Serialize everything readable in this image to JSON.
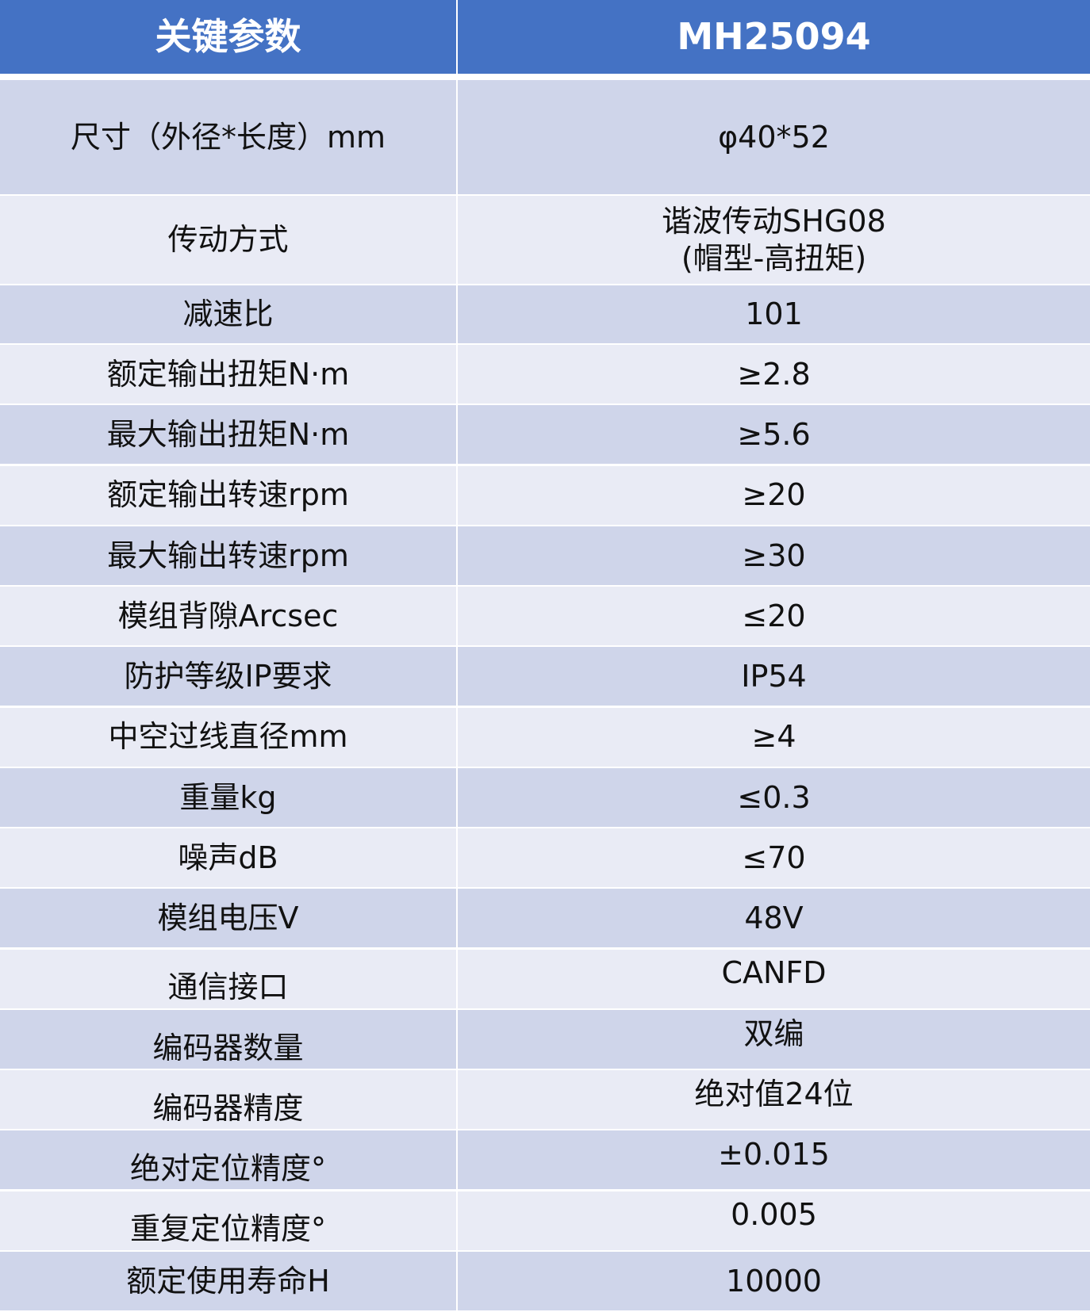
{
  "header": {
    "param_label": "关键参数",
    "model": "MH25094"
  },
  "colors": {
    "header_bg": "#4472C4",
    "row_dark": "#CFD5EA",
    "row_light": "#E9EBF5"
  },
  "rows": [
    {
      "param": "尺寸（外径*长度）mm",
      "value": "φ40*52"
    },
    {
      "param": "传动方式",
      "value": "谐波传动SHG08\n(帽型-高扭矩)"
    },
    {
      "param": "减速比",
      "value": "101"
    },
    {
      "param": "额定输出扭矩N·m",
      "value": "≥2.8"
    },
    {
      "param": "最大输出扭矩N·m",
      "value": "≥5.6"
    },
    {
      "param": "额定输出转速rpm",
      "value": "≥20"
    },
    {
      "param": "最大输出转速rpm",
      "value": "≥30"
    },
    {
      "param": "模组背隙Arcsec",
      "value": "≤20"
    },
    {
      "param": "防护等级IP要求",
      "value": "IP54"
    },
    {
      "param": "中空过线直径mm",
      "value": "≥4"
    },
    {
      "param": "重量kg",
      "value": "≤0.3"
    },
    {
      "param": "噪声dB",
      "value": "≤70"
    },
    {
      "param": "模组电压V",
      "value": "48V"
    },
    {
      "param": "通信接口",
      "value": "CANFD"
    },
    {
      "param": "编码器数量",
      "value": "双编"
    },
    {
      "param": "编码器精度",
      "value": "绝对值24位"
    },
    {
      "param": "绝对定位精度°",
      "value": "±0.015"
    },
    {
      "param": "重复定位精度°",
      "value": "0.005"
    },
    {
      "param": "额定使用寿命H",
      "value": "10000"
    }
  ]
}
